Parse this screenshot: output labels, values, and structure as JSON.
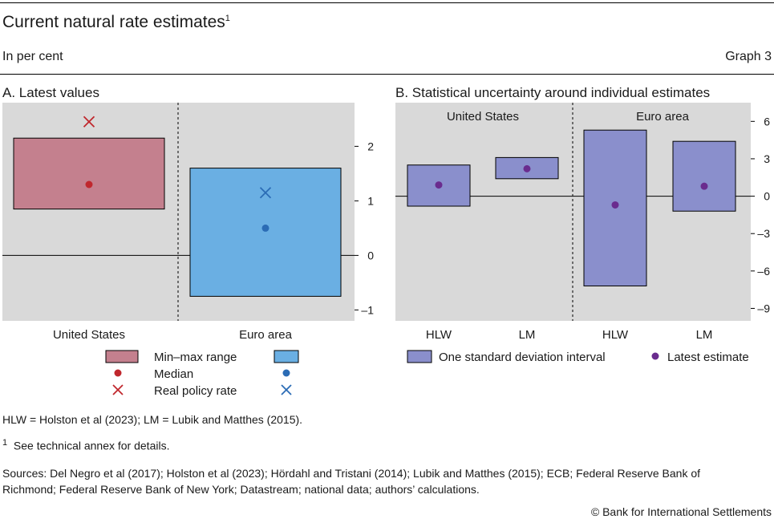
{
  "header": {
    "title": "Current natural rate estimates",
    "title_sup": "1",
    "unit": "In per cent",
    "graph_label": "Graph 3"
  },
  "colors": {
    "us_range": "#c4808e",
    "us_marker": "#c0272d",
    "ea_range": "#6aafe3",
    "ea_marker": "#2b6cb5",
    "sd_fill": "#8a8fcc",
    "sd_point": "#6a2c8e",
    "panel_bg": "#d9d9d9"
  },
  "chart_data": [
    {
      "type": "bar",
      "panel_title": "A. Latest values",
      "categories": [
        "United States",
        "Euro area"
      ],
      "ylim": [
        -1.2,
        2.8
      ],
      "yticks": [
        2,
        1,
        0,
        -1
      ],
      "ytick_labels": [
        "2",
        "1",
        "0",
        "–1"
      ],
      "series": [
        {
          "name": "Min–max range",
          "low": [
            0.85,
            -0.75
          ],
          "high": [
            2.15,
            1.6
          ]
        },
        {
          "name": "Median",
          "values": [
            1.3,
            0.5
          ]
        },
        {
          "name": "Real policy rate",
          "values": [
            2.45,
            1.15
          ]
        }
      ],
      "legend": {
        "labels": [
          "Min–max range",
          "Median",
          "Real policy rate"
        ],
        "placement": "bottom"
      }
    },
    {
      "type": "bar",
      "panel_title": "B. Statistical uncertainty around individual estimates",
      "groups": [
        "United States",
        "Euro area"
      ],
      "categories": [
        "HLW",
        "LM",
        "HLW",
        "LM"
      ],
      "ylim": [
        -10,
        7.5
      ],
      "yticks": [
        6,
        3,
        0,
        -3,
        -6,
        -9
      ],
      "ytick_labels": [
        "6",
        "3",
        "0",
        "–3",
        "–6",
        "–9"
      ],
      "series": [
        {
          "name": "One standard deviation interval",
          "low": [
            -0.8,
            1.4,
            -7.2,
            -1.2
          ],
          "high": [
            2.5,
            3.1,
            5.3,
            4.4
          ]
        },
        {
          "name": "Latest estimate",
          "values": [
            0.9,
            2.2,
            -0.7,
            0.8
          ]
        }
      ],
      "legend": {
        "labels": [
          "One standard deviation interval",
          "Latest estimate"
        ],
        "placement": "bottom"
      }
    }
  ],
  "footer": {
    "abbrev": "HLW = Holston et al (2023); LM = Lubik and Matthes (2015).",
    "footnote_num": "1",
    "footnote": "See technical annex for details.",
    "sources_line1": "Sources: Del Negro et al (2017); Holston et al (2023); Hördahl and Tristani (2014); Lubik and Matthes (2015); ECB; Federal Reserve Bank of",
    "sources_line2": "Richmond; Federal Reserve Bank of New York; Datastream; national data; authors’ calculations.",
    "copyright": "© Bank for International Settlements"
  }
}
